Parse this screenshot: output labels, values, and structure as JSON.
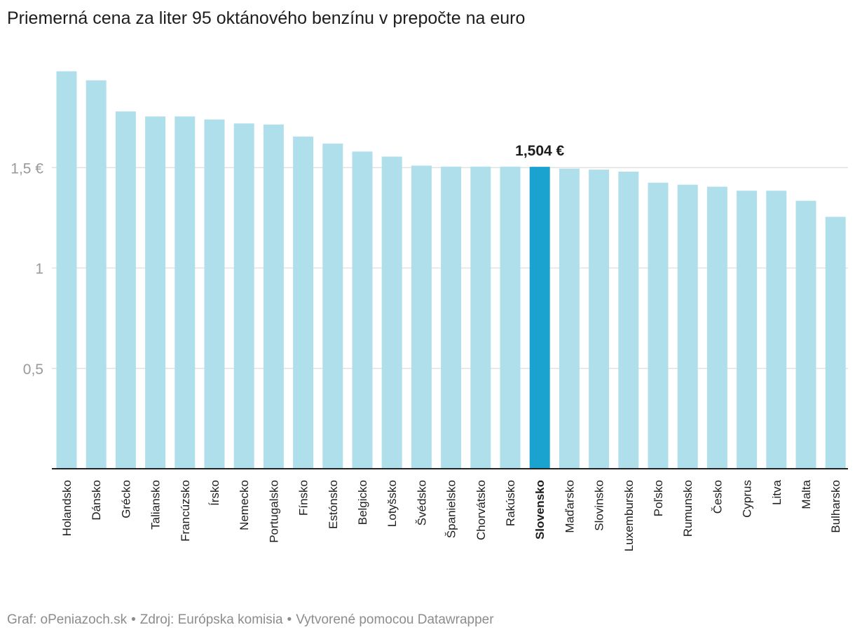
{
  "chart_data": {
    "type": "bar",
    "title": "Priemerná cena za liter 95 oktánového benzínu v prepočte na euro",
    "xlabel": "",
    "ylabel": "",
    "ylim": [
      0,
      2.0
    ],
    "yticks": [
      {
        "value": 0.5,
        "label": "0,5"
      },
      {
        "value": 1,
        "label": "1"
      },
      {
        "value": 1.5,
        "label": "1,5 €"
      }
    ],
    "grid": true,
    "categories": [
      "Holandsko",
      "Dánsko",
      "Grécko",
      "Taliansko",
      "Francúzsko",
      "Írsko",
      "Nemecko",
      "Portugalsko",
      "Fínsko",
      "Estónsko",
      "Belgicko",
      "Lotyšsko",
      "Švédsko",
      "Španielsko",
      "Chorvátsko",
      "Rakúsko",
      "Slovensko",
      "Maďarsko",
      "Slovinsko",
      "Luxembursko",
      "Poľsko",
      "Rumunsko",
      "Česko",
      "Cyprus",
      "Litva",
      "Malta",
      "Bulharsko"
    ],
    "values": [
      1.98,
      1.935,
      1.78,
      1.755,
      1.755,
      1.74,
      1.72,
      1.715,
      1.655,
      1.62,
      1.58,
      1.555,
      1.51,
      1.505,
      1.505,
      1.505,
      1.504,
      1.495,
      1.49,
      1.48,
      1.425,
      1.415,
      1.405,
      1.385,
      1.385,
      1.335,
      1.255
    ],
    "highlight": {
      "category": "Slovensko",
      "label": "1,504 €"
    },
    "colors": {
      "bar": "#b0dfec",
      "highlight": "#1ba3cf",
      "grid": "#e2e2e2",
      "axis": "#222222",
      "tick_text": "#9a9a9a"
    }
  },
  "footer": {
    "source_graph": "Graf: oPeniazoch.sk",
    "source_data": "Zdroj: Európska komisia",
    "made_with": "Vytvorené pomocou Datawrapper",
    "separator": "•"
  }
}
